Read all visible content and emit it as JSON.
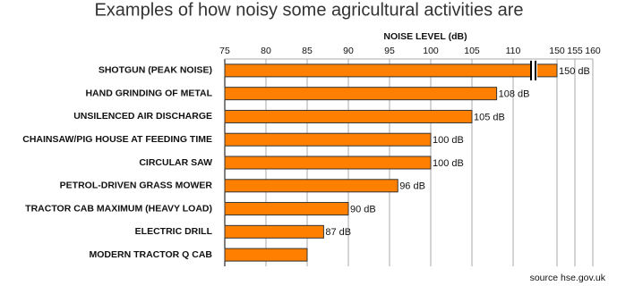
{
  "chart_data": {
    "type": "bar",
    "orientation": "horizontal",
    "title": "Examples of how noisy some agricultural activities are",
    "x_label": "NOISE LEVEL (dB)",
    "source": "source hse.gov.uk",
    "categories": [
      "SHOTGUN (PEAK NOISE)",
      "HAND GRINDING OF METAL",
      "UNSILENCED AIR DISCHARGE",
      "CHAINSAW/PIG HOUSE AT FEEDING TIME",
      "CIRCULAR SAW",
      "PETROL-DRIVEN GRASS MOWER",
      "TRACTOR CAB MAXIMUM (HEAVY LOAD)",
      "ELECTRIC DRILL",
      "MODERN TRACTOR Q CAB"
    ],
    "values": [
      150,
      108,
      105,
      100,
      100,
      96,
      90,
      87,
      85
    ],
    "value_labels": [
      "150 dB",
      "108 dB",
      "105 dB",
      "100 dB",
      "100 dB",
      "96 dB",
      "90 dB",
      "87 dB",
      null
    ],
    "color": "#ff8000",
    "xlim": [
      75,
      160
    ],
    "x_break": [
      112.5,
      145
    ],
    "xticks": [
      75,
      80,
      85,
      90,
      95,
      100,
      105,
      110,
      150,
      155,
      160
    ],
    "grid": true
  }
}
